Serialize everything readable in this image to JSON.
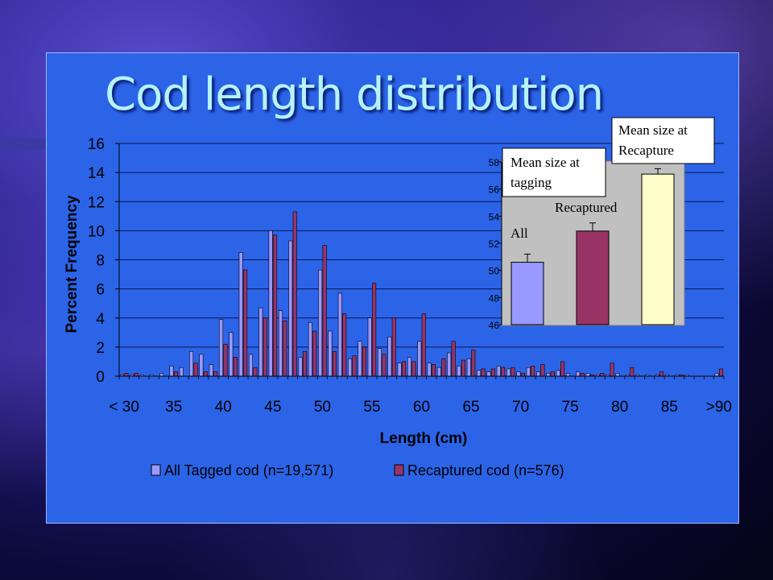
{
  "slide": {
    "title": "Cod length distribution"
  },
  "chart_data": [
    {
      "type": "bar",
      "title": "",
      "xlabel": "Length (cm)",
      "ylabel": "Percent Frequency",
      "ylim": [
        0,
        16
      ],
      "yticks": [
        0,
        2,
        4,
        6,
        8,
        10,
        12,
        14,
        16
      ],
      "xtick_labels": [
        "< 30",
        "35",
        "40",
        "45",
        "50",
        "55",
        "60",
        "65",
        "70",
        "75",
        "80",
        "85",
        ">90"
      ],
      "x": [
        "< 30",
        31,
        32,
        33,
        34,
        35,
        36,
        37,
        38,
        39,
        40,
        41,
        42,
        43,
        44,
        45,
        46,
        47,
        48,
        49,
        50,
        51,
        52,
        53,
        54,
        55,
        56,
        57,
        58,
        59,
        60,
        61,
        62,
        63,
        64,
        65,
        66,
        67,
        68,
        69,
        70,
        71,
        72,
        73,
        74,
        75,
        76,
        77,
        78,
        79,
        80,
        81,
        82,
        83,
        84,
        85,
        86,
        87,
        88,
        89,
        ">90"
      ],
      "series": [
        {
          "name": "All Tagged cod (n=19,571)",
          "color": "#9999ff",
          "values": [
            0.1,
            0.1,
            0.1,
            0.1,
            0.2,
            0.7,
            0.6,
            1.7,
            1.5,
            0.8,
            3.9,
            3.0,
            8.5,
            1.5,
            4.7,
            10.0,
            4.5,
            9.3,
            1.3,
            3.7,
            7.3,
            3.1,
            5.7,
            1.2,
            2.4,
            4.0,
            1.9,
            2.7,
            0.9,
            1.3,
            2.4,
            0.9,
            0.6,
            1.6,
            0.7,
            1.2,
            0.4,
            0.3,
            0.7,
            0.5,
            0.3,
            0.6,
            0.3,
            0.2,
            0.4,
            0.2,
            0.3,
            0.2,
            0.1,
            0.1,
            0.2,
            0.1,
            0.1,
            0.1,
            0.1,
            0.1,
            0.1,
            0.1,
            0.0,
            0.0,
            0.2
          ]
        },
        {
          "name": "Recaptured cod (n=576)",
          "color": "#993366",
          "values": [
            0.2,
            0.2,
            0.0,
            0.0,
            0.0,
            0.3,
            0.0,
            0.9,
            0.3,
            0.3,
            2.2,
            1.3,
            7.3,
            0.6,
            4.0,
            9.7,
            3.8,
            11.3,
            1.7,
            3.1,
            9.0,
            1.7,
            4.3,
            1.4,
            2.0,
            6.4,
            1.5,
            4.0,
            1.0,
            1.0,
            4.3,
            0.8,
            1.2,
            2.4,
            1.1,
            1.8,
            0.5,
            0.5,
            0.6,
            0.6,
            0.2,
            0.7,
            0.8,
            0.3,
            1.0,
            0.0,
            0.2,
            0.1,
            0.2,
            0.9,
            0.0,
            0.6,
            0.0,
            0.0,
            0.3,
            0.0,
            0.1,
            0.0,
            0.0,
            0.0,
            0.5
          ]
        }
      ],
      "grid": true,
      "legend": "bottom"
    },
    {
      "type": "bar",
      "title": "",
      "ylim": [
        46,
        58
      ],
      "yticks": [
        46,
        48,
        50,
        52,
        54,
        56,
        58
      ],
      "categories": [
        "All",
        "Recaptured",
        "Mean size at Recapture"
      ],
      "values": [
        50.6,
        52.9,
        57.1
      ],
      "error": [
        0.6,
        0.6,
        0.4
      ],
      "colors": [
        "#9999ff",
        "#993366",
        "#ffffcc"
      ],
      "annotations": [
        "Mean size at tagging",
        "Mean size at Recapture"
      ],
      "labels": [
        "All",
        "Recaptured"
      ]
    }
  ]
}
